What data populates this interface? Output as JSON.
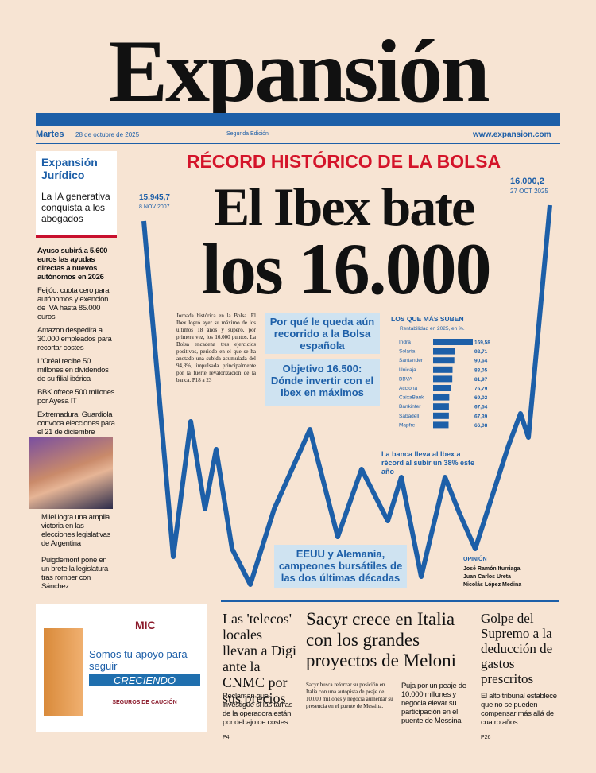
{
  "masthead": {
    "title": "Expansión",
    "day": "Martes",
    "date": "28 de octubre de 2025",
    "edition": "Segunda Edición",
    "url": "www.expansion.com"
  },
  "sidebar": {
    "supplement": {
      "title": "Expansión Jurídico",
      "text": "La IA generativa conquista a los abogados"
    },
    "items": [
      "Ayuso subirá a 5.600 euros las ayudas directas a nuevos autónomos en 2026",
      "Feijóo: cuota cero para autónomos y exención de IVA hasta 85.000 euros",
      "Amazon despedirá a 30.000 empleados para recortar costes",
      "L'Oréal recibe 50 millones en dividendos de su filial ibérica",
      "BBK ofrece 500 millones por Ayesa IT",
      "Extremadura: Guardiola convoca elecciones para el 21 de diciembre"
    ],
    "items_after_photo": [
      "Milei logra una amplia victoria en las elecciones legislativas de Argentina",
      "Puigdemont pone en un brete la legislatura tras romper con Sánchez"
    ]
  },
  "main": {
    "kicker": "RÉCORD HISTÓRICO DE LA BOLSA",
    "headline_1": "El Ibex bate",
    "headline_2": "los 16.000",
    "start_value": "15.945,7",
    "start_date": "8 NOV 2007",
    "end_value": "16.000,2",
    "end_date": "27 OCT 2025",
    "body": "Jornada histórica en la Bolsa. El Ibex logró ayer su máximo de los últimos 18 años y superó, por primera vez, los 16.000 puntos. La Bolsa encadena tres ejercicios positivos, periodo en el que se ha anotado una subida acumulada del 94,3%, impulsada principalmente por la fuerte revalorización de la banca. P18 a 23",
    "box_1": "Por qué le queda aún recorrido a la Bolsa española",
    "box_2": "Objetivo 16.500: Dónde invertir con el Ibex en máximos",
    "box_3": "EEUU y Alemania, campeones bursátiles de las dos últimas décadas",
    "note": "La banca lleva al Ibex a récord al subir un 38% este año",
    "opinion_label": "OPINIÓN",
    "opinion": [
      "José Ramón Iturriaga",
      "Juan Carlos Ureta",
      "Nicolás López Medina"
    ]
  },
  "chart_data": {
    "type": "bar",
    "title": "LOS QUE MÁS SUBEN",
    "subtitle": "Rentabilidad en 2025, en %.",
    "categories": [
      "Indra",
      "Solaria",
      "Santander",
      "Unicaja",
      "BBVA",
      "Acciona",
      "CaixaBank",
      "Bankinter",
      "Sabadell",
      "Mapfre"
    ],
    "values": [
      169.58,
      92.71,
      90.64,
      83.05,
      81.97,
      76.79,
      69.02,
      67.54,
      67.39,
      66.08
    ],
    "value_labels": [
      "169,58",
      "92,71",
      "90,64",
      "83,05",
      "81,97",
      "76,79",
      "69,02",
      "67,54",
      "67,39",
      "66,08"
    ],
    "color": "#1d5fa8"
  },
  "bottom": {
    "ad": {
      "brand": "MIC",
      "line_1": "Somos tu apoyo para seguir",
      "line_2": "CRECIENDO",
      "line_3": "SEGUROS DE CAUCIÓN"
    },
    "article_1": {
      "title": "Las 'telecos' locales llevan a Digi ante la CNMC por sus precios",
      "text": "Reclaman que investigue si las tarifas de la operadora están por debajo de costes",
      "page": "P4"
    },
    "article_2": {
      "title": "Sacyr crece en Italia con los grandes proyectos de Meloni",
      "text": "Sacyr busca reforzar su posición en Italia con una autopista de peaje de 10.000 millones y negocia aumentar su presencia en el puente de Messina.",
      "note": "Puja por un peaje de 10.000 millones y negocia elevar su participación en el puente de Messina"
    },
    "article_3": {
      "title": "Golpe del Supremo a la deducción de gastos prescritos",
      "text": "El alto tribunal establece que no se pueden compensar más allá de cuatro años",
      "page": "P26"
    }
  }
}
